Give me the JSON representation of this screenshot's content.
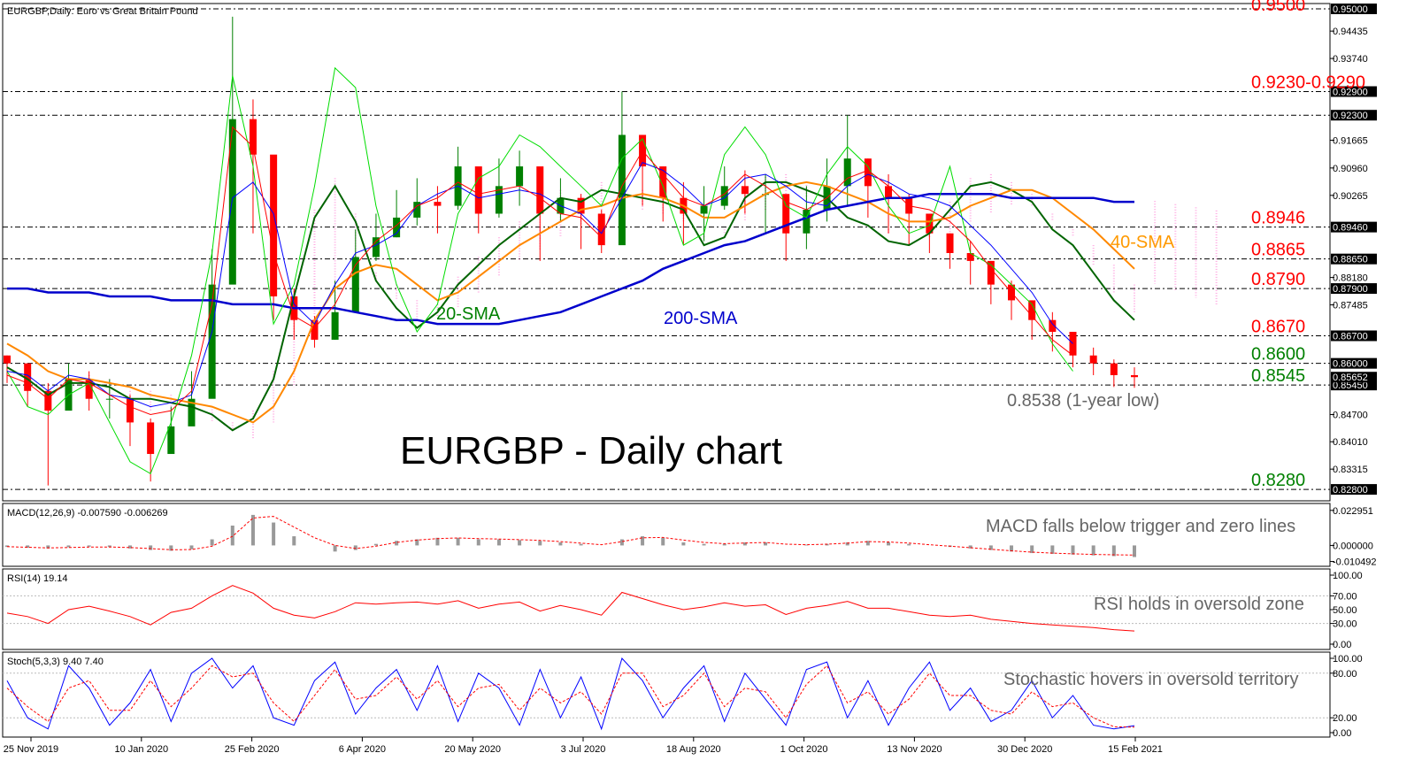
{
  "chart_data": [
    {
      "type": "candlestick",
      "title": "EURGBP,Daily:  Euro vs Great Britain Pound",
      "subtitle": "EURGBP - Daily chart",
      "ylim": [
        0.826,
        0.95
      ],
      "y_ticks": [
        "0.94435",
        "0.93740",
        "0.91665",
        "0.90960",
        "0.90265",
        "0.88180",
        "0.87485",
        "0.84700",
        "0.84010",
        "0.83315"
      ],
      "x_ticks": [
        "25 Nov 2019",
        "10 Jan 2020",
        "25 Feb 2020",
        "6 Apr 2020",
        "20 May 2020",
        "3 Jul 2020",
        "18 Aug 2020",
        "1 Oct 2020",
        "13 Nov 2020",
        "30 Dec 2020",
        "15 Feb 2021"
      ],
      "levels": [
        {
          "value": 0.95,
          "label": "0.9500",
          "box": "0.95000",
          "color": "#ff0000"
        },
        {
          "value": 0.929,
          "label": "0.9230-0.9290",
          "box": "0.92900",
          "color": "#ff0000"
        },
        {
          "value": 0.923,
          "label": "",
          "box": "0.92300",
          "color": "#ff0000"
        },
        {
          "value": 0.8946,
          "label": "0.8946",
          "box": "0.89460",
          "color": "#ff0000"
        },
        {
          "value": 0.8865,
          "label": "0.8865",
          "box": "0.88650",
          "color": "#ff0000"
        },
        {
          "value": 0.879,
          "label": "0.8790",
          "box": "0.87900",
          "color": "#ff0000"
        },
        {
          "value": 0.867,
          "label": "0.8670",
          "box": "0.86700",
          "color": "#ff0000"
        },
        {
          "value": 0.86,
          "label": "0.8600",
          "box": "0.86000",
          "color": "#008000"
        },
        {
          "value": 0.8545,
          "label": "0.8545",
          "box": "0.85450",
          "color": "#008000"
        },
        {
          "value": 0.828,
          "label": "0.8280",
          "box": "0.82800",
          "color": "#008000"
        }
      ],
      "last_price_box": "0.85652",
      "ma_labels": [
        {
          "text": "20-SMA",
          "color": "#008000"
        },
        {
          "text": "200-SMA",
          "color": "#0000cc"
        },
        {
          "text": "40-SMA",
          "color": "#ff9900"
        }
      ],
      "low_annotation": "0.8538 (1-year low)",
      "series": [
        {
          "name": "20-SMA",
          "color": "#006400",
          "values": [
            0.859,
            0.856,
            0.852,
            0.855,
            0.855,
            0.854,
            0.851,
            0.851,
            0.85,
            0.849,
            0.847,
            0.843,
            0.846,
            0.856,
            0.877,
            0.897,
            0.905,
            0.896,
            0.881,
            0.874,
            0.869,
            0.873,
            0.88,
            0.885,
            0.89,
            0.894,
            0.898,
            0.902,
            0.901,
            0.904,
            0.903,
            0.902,
            0.901,
            0.899,
            0.89,
            0.892,
            0.902,
            0.906,
            0.906,
            0.904,
            0.902,
            0.897,
            0.895,
            0.891,
            0.89,
            0.893,
            0.899,
            0.905,
            0.906,
            0.904,
            0.901,
            0.894,
            0.89,
            0.883,
            0.876,
            0.871
          ]
        },
        {
          "name": "40-SMA",
          "color": "#ff8800",
          "values": [
            0.865,
            0.862,
            0.858,
            0.856,
            0.856,
            0.855,
            0.854,
            0.852,
            0.851,
            0.85,
            0.849,
            0.847,
            0.845,
            0.849,
            0.858,
            0.871,
            0.879,
            0.883,
            0.885,
            0.884,
            0.88,
            0.876,
            0.878,
            0.882,
            0.886,
            0.89,
            0.893,
            0.896,
            0.899,
            0.9,
            0.902,
            0.903,
            0.902,
            0.9,
            0.897,
            0.897,
            0.9,
            0.903,
            0.905,
            0.906,
            0.905,
            0.903,
            0.901,
            0.898,
            0.896,
            0.896,
            0.897,
            0.9,
            0.902,
            0.904,
            0.904,
            0.902,
            0.898,
            0.894,
            0.889,
            0.884
          ]
        },
        {
          "name": "200-SMA",
          "color": "#0000cc",
          "values": [
            0.879,
            0.879,
            0.878,
            0.878,
            0.878,
            0.877,
            0.877,
            0.877,
            0.876,
            0.876,
            0.876,
            0.875,
            0.875,
            0.875,
            0.874,
            0.874,
            0.874,
            0.873,
            0.872,
            0.871,
            0.871,
            0.87,
            0.87,
            0.87,
            0.87,
            0.871,
            0.872,
            0.873,
            0.875,
            0.877,
            0.879,
            0.881,
            0.884,
            0.886,
            0.888,
            0.89,
            0.891,
            0.893,
            0.895,
            0.897,
            0.899,
            0.9,
            0.901,
            0.902,
            0.902,
            0.903,
            0.903,
            0.903,
            0.903,
            0.902,
            0.902,
            0.902,
            0.902,
            0.902,
            0.901,
            0.901
          ]
        },
        {
          "name": "",
          "color": "#00dd00",
          "values": [
            0.858,
            0.849,
            0.847,
            0.852,
            0.855,
            0.845,
            0.835,
            0.832,
            0.845,
            0.862,
            0.888,
            0.933,
            0.91,
            0.87,
            0.88,
            0.905,
            0.935,
            0.93,
            0.9,
            0.88,
            0.868,
            0.875,
            0.898,
            0.907,
            0.91,
            0.918,
            0.915,
            0.91,
            0.905,
            0.9,
            0.912,
            0.917,
            0.905,
            0.89,
            0.893,
            0.913,
            0.92,
            0.913,
            0.9,
            0.897,
            0.908,
            0.915,
            0.91,
            0.9,
            0.893,
            0.895,
            0.91,
            0.888,
            0.885,
            0.88,
            0.875,
            0.865,
            0.858,
            null,
            null,
            null
          ]
        },
        {
          "name": "",
          "color": "#0000ff",
          "values": [
            0.858,
            0.857,
            0.853,
            0.857,
            0.856,
            0.852,
            0.851,
            0.849,
            0.85,
            0.852,
            0.868,
            0.902,
            0.906,
            0.898,
            0.875,
            0.87,
            0.88,
            0.888,
            0.89,
            0.893,
            0.9,
            0.903,
            0.905,
            0.902,
            0.903,
            0.904,
            0.903,
            0.9,
            0.898,
            0.893,
            0.902,
            0.911,
            0.909,
            0.905,
            0.9,
            0.902,
            0.907,
            0.908,
            0.905,
            0.901,
            0.9,
            0.905,
            0.908,
            0.906,
            0.903,
            0.902,
            0.9,
            0.895,
            0.89,
            0.884,
            0.878,
            0.87,
            0.865,
            null,
            null,
            null
          ]
        },
        {
          "name": "",
          "color": "#ff0000",
          "values": [
            0.857,
            0.855,
            0.851,
            0.856,
            0.855,
            0.852,
            0.849,
            0.847,
            0.848,
            0.853,
            0.875,
            0.92,
            0.915,
            0.888,
            0.872,
            0.869,
            0.875,
            0.885,
            0.891,
            0.895,
            0.9,
            0.902,
            0.906,
            0.903,
            0.904,
            0.905,
            0.902,
            0.898,
            0.897,
            0.892,
            0.905,
            0.914,
            0.908,
            0.902,
            0.9,
            0.903,
            0.908,
            0.905,
            0.901,
            0.899,
            0.902,
            0.907,
            0.909,
            0.905,
            0.9,
            0.899,
            0.896,
            0.891,
            0.884,
            0.878,
            0.872,
            0.866,
            0.862,
            null,
            null,
            null
          ]
        }
      ],
      "candles": {
        "close": [
          0.86,
          0.853,
          0.848,
          0.856,
          0.851,
          0.851,
          0.845,
          0.837,
          0.844,
          0.851,
          0.88,
          0.922,
          0.913,
          0.877,
          0.871,
          0.866,
          0.873,
          0.887,
          0.892,
          0.897,
          0.901,
          0.9,
          0.91,
          0.898,
          0.905,
          0.91,
          0.898,
          0.902,
          0.898,
          0.89,
          0.918,
          0.91,
          0.902,
          0.898,
          0.9,
          0.905,
          0.903,
          0.903,
          0.893,
          0.899,
          0.905,
          0.912,
          0.905,
          0.902,
          0.898,
          0.893,
          0.888,
          0.886,
          0.88,
          0.876,
          0.871,
          0.868,
          0.862,
          0.86,
          0.857,
          0.8565
        ],
        "high": [
          0.862,
          0.86,
          0.855,
          0.86,
          0.858,
          0.856,
          0.852,
          0.846,
          0.849,
          0.858,
          0.889,
          0.948,
          0.927,
          0.889,
          0.879,
          0.872,
          0.881,
          0.894,
          0.898,
          0.904,
          0.907,
          0.905,
          0.915,
          0.908,
          0.912,
          0.914,
          0.905,
          0.907,
          0.903,
          0.899,
          0.929,
          0.917,
          0.91,
          0.906,
          0.905,
          0.91,
          0.909,
          0.908,
          0.899,
          0.905,
          0.912,
          0.923,
          0.912,
          0.908,
          0.903,
          0.898,
          0.893,
          0.891,
          0.886,
          0.881,
          0.876,
          0.873,
          0.867,
          0.864,
          0.861,
          0.859
        ],
        "low": [
          0.855,
          0.849,
          0.829,
          0.849,
          0.848,
          0.846,
          0.839,
          0.83,
          0.838,
          0.847,
          0.874,
          0.9,
          0.893,
          0.871,
          0.866,
          0.864,
          0.866,
          0.88,
          0.886,
          0.892,
          0.895,
          0.893,
          0.899,
          0.893,
          0.897,
          0.9,
          0.886,
          0.896,
          0.889,
          0.888,
          0.902,
          0.9,
          0.896,
          0.89,
          0.891,
          0.899,
          0.898,
          0.893,
          0.886,
          0.889,
          0.896,
          0.9,
          0.897,
          0.893,
          0.89,
          0.888,
          0.884,
          0.88,
          0.875,
          0.871,
          0.866,
          0.863,
          0.859,
          0.857,
          0.854,
          0.8538
        ]
      }
    },
    {
      "type": "histogram",
      "title": "MACD(12,26,9) -0.007590 -0.006269",
      "annotation": "MACD falls below trigger and zero lines",
      "ylim": [
        -0.0125,
        0.024
      ],
      "y_ticks": [
        "0.022951",
        "0.000000",
        "-0.010492"
      ],
      "histogram": [
        -0.001,
        -0.0015,
        -0.002,
        -0.0012,
        -0.0008,
        -0.001,
        -0.002,
        -0.003,
        -0.0035,
        -0.0025,
        0.004,
        0.013,
        0.02,
        0.015,
        0.006,
        0.0,
        -0.004,
        -0.003,
        0.001,
        0.003,
        0.004,
        0.005,
        0.005,
        0.004,
        0.004,
        0.0035,
        0.003,
        0.002,
        0.001,
        0.0,
        0.004,
        0.006,
        0.005,
        0.002,
        0.001,
        0.001,
        0.002,
        0.002,
        0.0,
        0.0005,
        0.001,
        0.002,
        0.003,
        0.002,
        0.001,
        0.0,
        -0.001,
        -0.002,
        -0.003,
        -0.004,
        -0.005,
        -0.0055,
        -0.006,
        -0.0065,
        -0.007,
        -0.0076
      ],
      "signal": [
        -0.0008,
        -0.0012,
        -0.0016,
        -0.0014,
        -0.0011,
        -0.001,
        -0.0014,
        -0.0021,
        -0.0028,
        -0.0027,
        -0.0005,
        0.006,
        0.018,
        0.019,
        0.012,
        0.005,
        0.0,
        -0.002,
        -0.0005,
        0.002,
        0.0035,
        0.0045,
        0.0049,
        0.0045,
        0.0042,
        0.0038,
        0.0033,
        0.0025,
        0.0015,
        0.0005,
        0.0025,
        0.005,
        0.0052,
        0.0035,
        0.002,
        0.0012,
        0.0016,
        0.0019,
        0.0008,
        0.0005,
        0.0008,
        0.0015,
        0.0025,
        0.0023,
        0.0015,
        0.0005,
        -0.0005,
        -0.0015,
        -0.0025,
        -0.0035,
        -0.0044,
        -0.005,
        -0.0055,
        -0.0059,
        -0.0061,
        -0.0063
      ]
    },
    {
      "type": "line",
      "title": "RSI(14) 19.14",
      "annotation": "RSI holds in oversold zone",
      "ylim": [
        0,
        100
      ],
      "y_ticks": [
        "100.00",
        "70.00",
        "50.00",
        "30.00",
        "0.00"
      ],
      "series": [
        {
          "name": "",
          "color": "#ff0000",
          "values": [
            45,
            40,
            30,
            50,
            55,
            48,
            40,
            28,
            46,
            52,
            70,
            85,
            74,
            52,
            42,
            38,
            47,
            60,
            58,
            60,
            61,
            58,
            63,
            52,
            58,
            61,
            48,
            56,
            50,
            42,
            75,
            66,
            57,
            50,
            54,
            60,
            55,
            57,
            43,
            52,
            56,
            62,
            52,
            52,
            47,
            42,
            40,
            42,
            36,
            33,
            30,
            28,
            26,
            24,
            21,
            19.14
          ]
        }
      ]
    },
    {
      "type": "line",
      "title": "Stoch(5,3,3) 9.40 7.40",
      "annotation": "Stochastic hovers in oversold territory",
      "ylim": [
        0,
        100
      ],
      "y_ticks": [
        "100.00",
        "80.00",
        "20.00",
        "0.00"
      ],
      "series": [
        {
          "name": "",
          "color": "#0000ff",
          "values": [
            70,
            20,
            5,
            90,
            60,
            10,
            40,
            85,
            15,
            80,
            100,
            60,
            90,
            20,
            10,
            70,
            95,
            25,
            60,
            85,
            30,
            90,
            15,
            80,
            60,
            10,
            85,
            20,
            75,
            5,
            100,
            70,
            20,
            60,
            90,
            15,
            80,
            45,
            10,
            85,
            95,
            20,
            70,
            10,
            60,
            95,
            30,
            60,
            15,
            30,
            70,
            20,
            50,
            10,
            5,
            9.4
          ]
        },
        {
          "name": "",
          "color": "#ff0000",
          "values": [
            60,
            35,
            15,
            60,
            70,
            30,
            30,
            70,
            35,
            60,
            90,
            75,
            80,
            40,
            15,
            50,
            85,
            45,
            50,
            75,
            45,
            70,
            35,
            60,
            65,
            30,
            60,
            40,
            55,
            25,
            80,
            80,
            35,
            50,
            80,
            35,
            60,
            55,
            20,
            65,
            90,
            40,
            55,
            25,
            45,
            80,
            50,
            50,
            30,
            25,
            55,
            35,
            40,
            20,
            8,
            7.4
          ]
        }
      ]
    }
  ]
}
